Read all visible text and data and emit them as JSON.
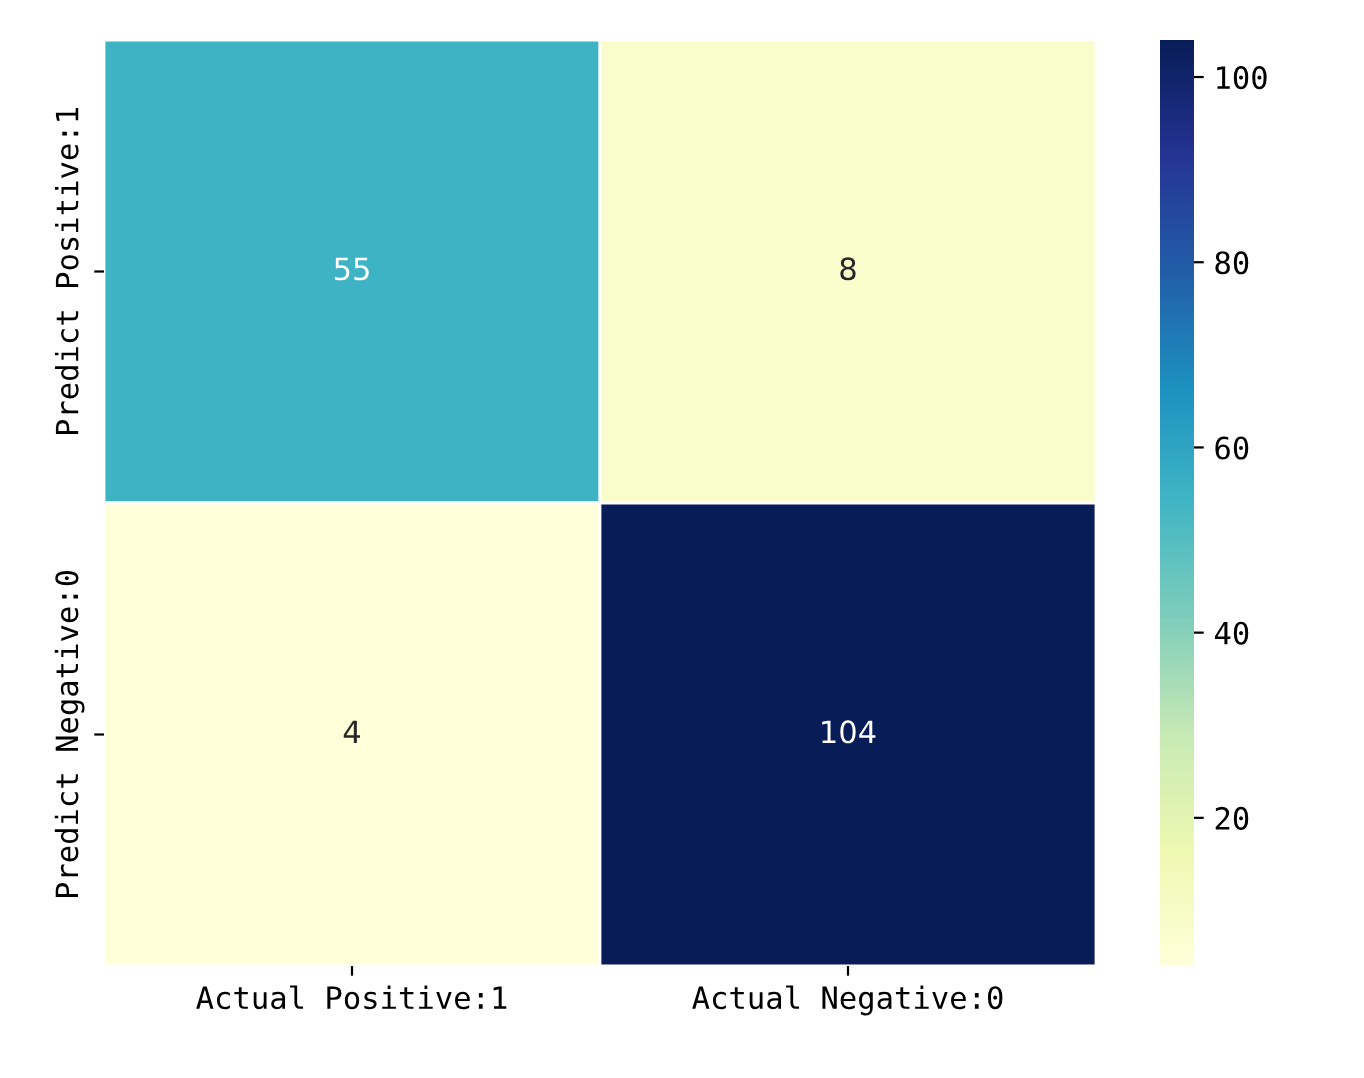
{
  "chart_data": {
    "type": "heatmap",
    "categories": [
      "Actual Positive:1",
      "Actual Negative:0"
    ],
    "y_categories": [
      "Predict Positive:1",
      "Predict Negative:0"
    ],
    "cells": [
      [
        55,
        8
      ],
      [
        4,
        104
      ]
    ],
    "data_labels": true,
    "clim": [
      4,
      104
    ],
    "cticks": [
      20,
      40,
      60,
      80,
      100
    ]
  }
}
